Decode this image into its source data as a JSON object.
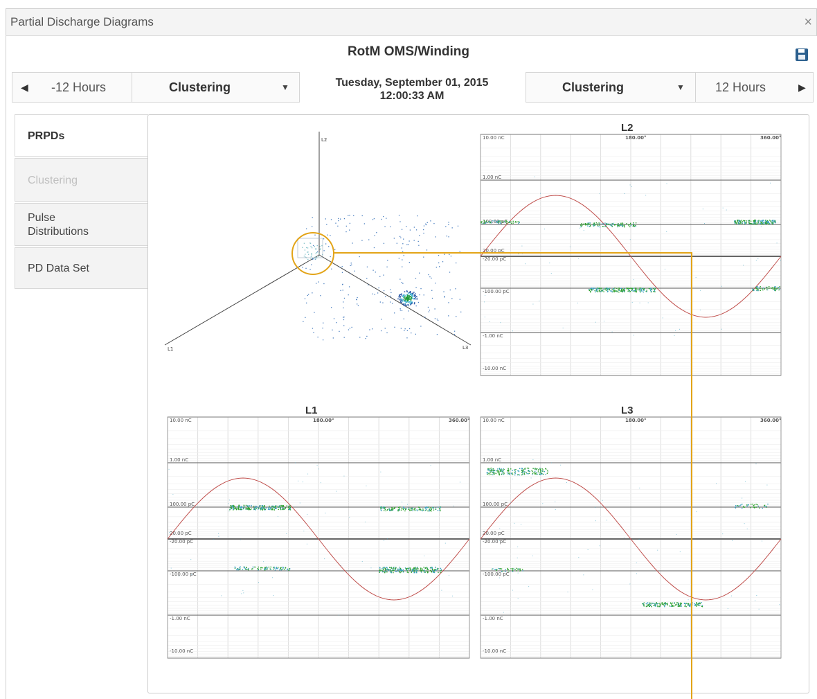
{
  "window": {
    "title": "Partial Discharge Diagrams",
    "close_label": "×"
  },
  "header": {
    "title": "RotM OMS/Winding",
    "save_icon": "save-icon"
  },
  "nav": {
    "left": {
      "prev_label": "-12 Hours",
      "mode_label": "Clustering",
      "arrow": "◀",
      "caret": "▼"
    },
    "right": {
      "mode_label": "Clustering",
      "next_label": "12 Hours",
      "arrow": "▶",
      "caret": "▼"
    },
    "date_line1": "Tuesday, September 01, 2015",
    "date_line2": "12:00:33 AM"
  },
  "tabs": [
    {
      "label": "PRPDs",
      "state": "active"
    },
    {
      "label": "Clustering",
      "state": "disabled"
    },
    {
      "label": "Pulse Distributions",
      "state": "normal"
    },
    {
      "label": "PD Data Set",
      "state": "normal"
    }
  ],
  "ternary": {
    "axes": [
      "L2",
      "L1",
      "L3"
    ]
  },
  "charts": [
    {
      "id": "L2",
      "title": "L2",
      "phase_labels": [
        "180.00°",
        "360.00°"
      ]
    },
    {
      "id": "L1",
      "title": "L1",
      "phase_labels": [
        "180.00°",
        "360.00°"
      ]
    },
    {
      "id": "L3",
      "title": "L3",
      "phase_labels": [
        "180.00°",
        "360.00°"
      ]
    }
  ],
  "y_ticks": [
    "10.00 nC",
    "1.00 nC",
    "100.00 pC",
    "20.00 pC",
    "-20.00 pC",
    "-100.00 pC",
    "-1.00 nC",
    "-10.00 nC"
  ],
  "colors": {
    "accent": "#e3a417",
    "sine": "#c0504d",
    "cluster_high": "#2ea02e",
    "cluster_low": "#3aa0c0"
  }
}
